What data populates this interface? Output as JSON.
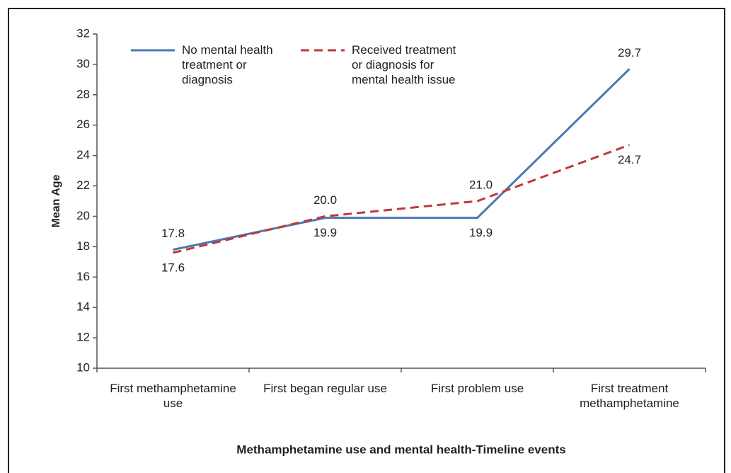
{
  "chart_data": {
    "type": "line",
    "categories": [
      "First methamphetamine use",
      "First began regular use",
      "First problem use",
      "First treatment methamphetamine"
    ],
    "series": [
      {
        "name": "No mental health treatment or diagnosis",
        "color": "#4a78b5",
        "dash": false,
        "values": [
          17.8,
          19.9,
          19.9,
          29.7
        ],
        "value_labels": [
          "17.8",
          "19.9",
          "19.9",
          "29.7"
        ],
        "label_side": [
          "above",
          "below",
          "below",
          "above"
        ]
      },
      {
        "name": "Received treatment or diagnosis for mental health issue",
        "color": "#c0393b",
        "dash": true,
        "values": [
          17.6,
          20.0,
          21.0,
          24.7
        ],
        "value_labels": [
          "17.6",
          "20.0",
          "21.0",
          "24.7"
        ],
        "label_side": [
          "below",
          "above",
          "above",
          "below"
        ]
      }
    ],
    "ylim": [
      10,
      32
    ],
    "yticks": [
      10,
      12,
      14,
      16,
      18,
      20,
      22,
      24,
      26,
      28,
      30,
      32
    ],
    "ylabel": "Mean Age",
    "xlabel": "Methamphetamine use and mental health-Timeline events",
    "grid": false
  }
}
